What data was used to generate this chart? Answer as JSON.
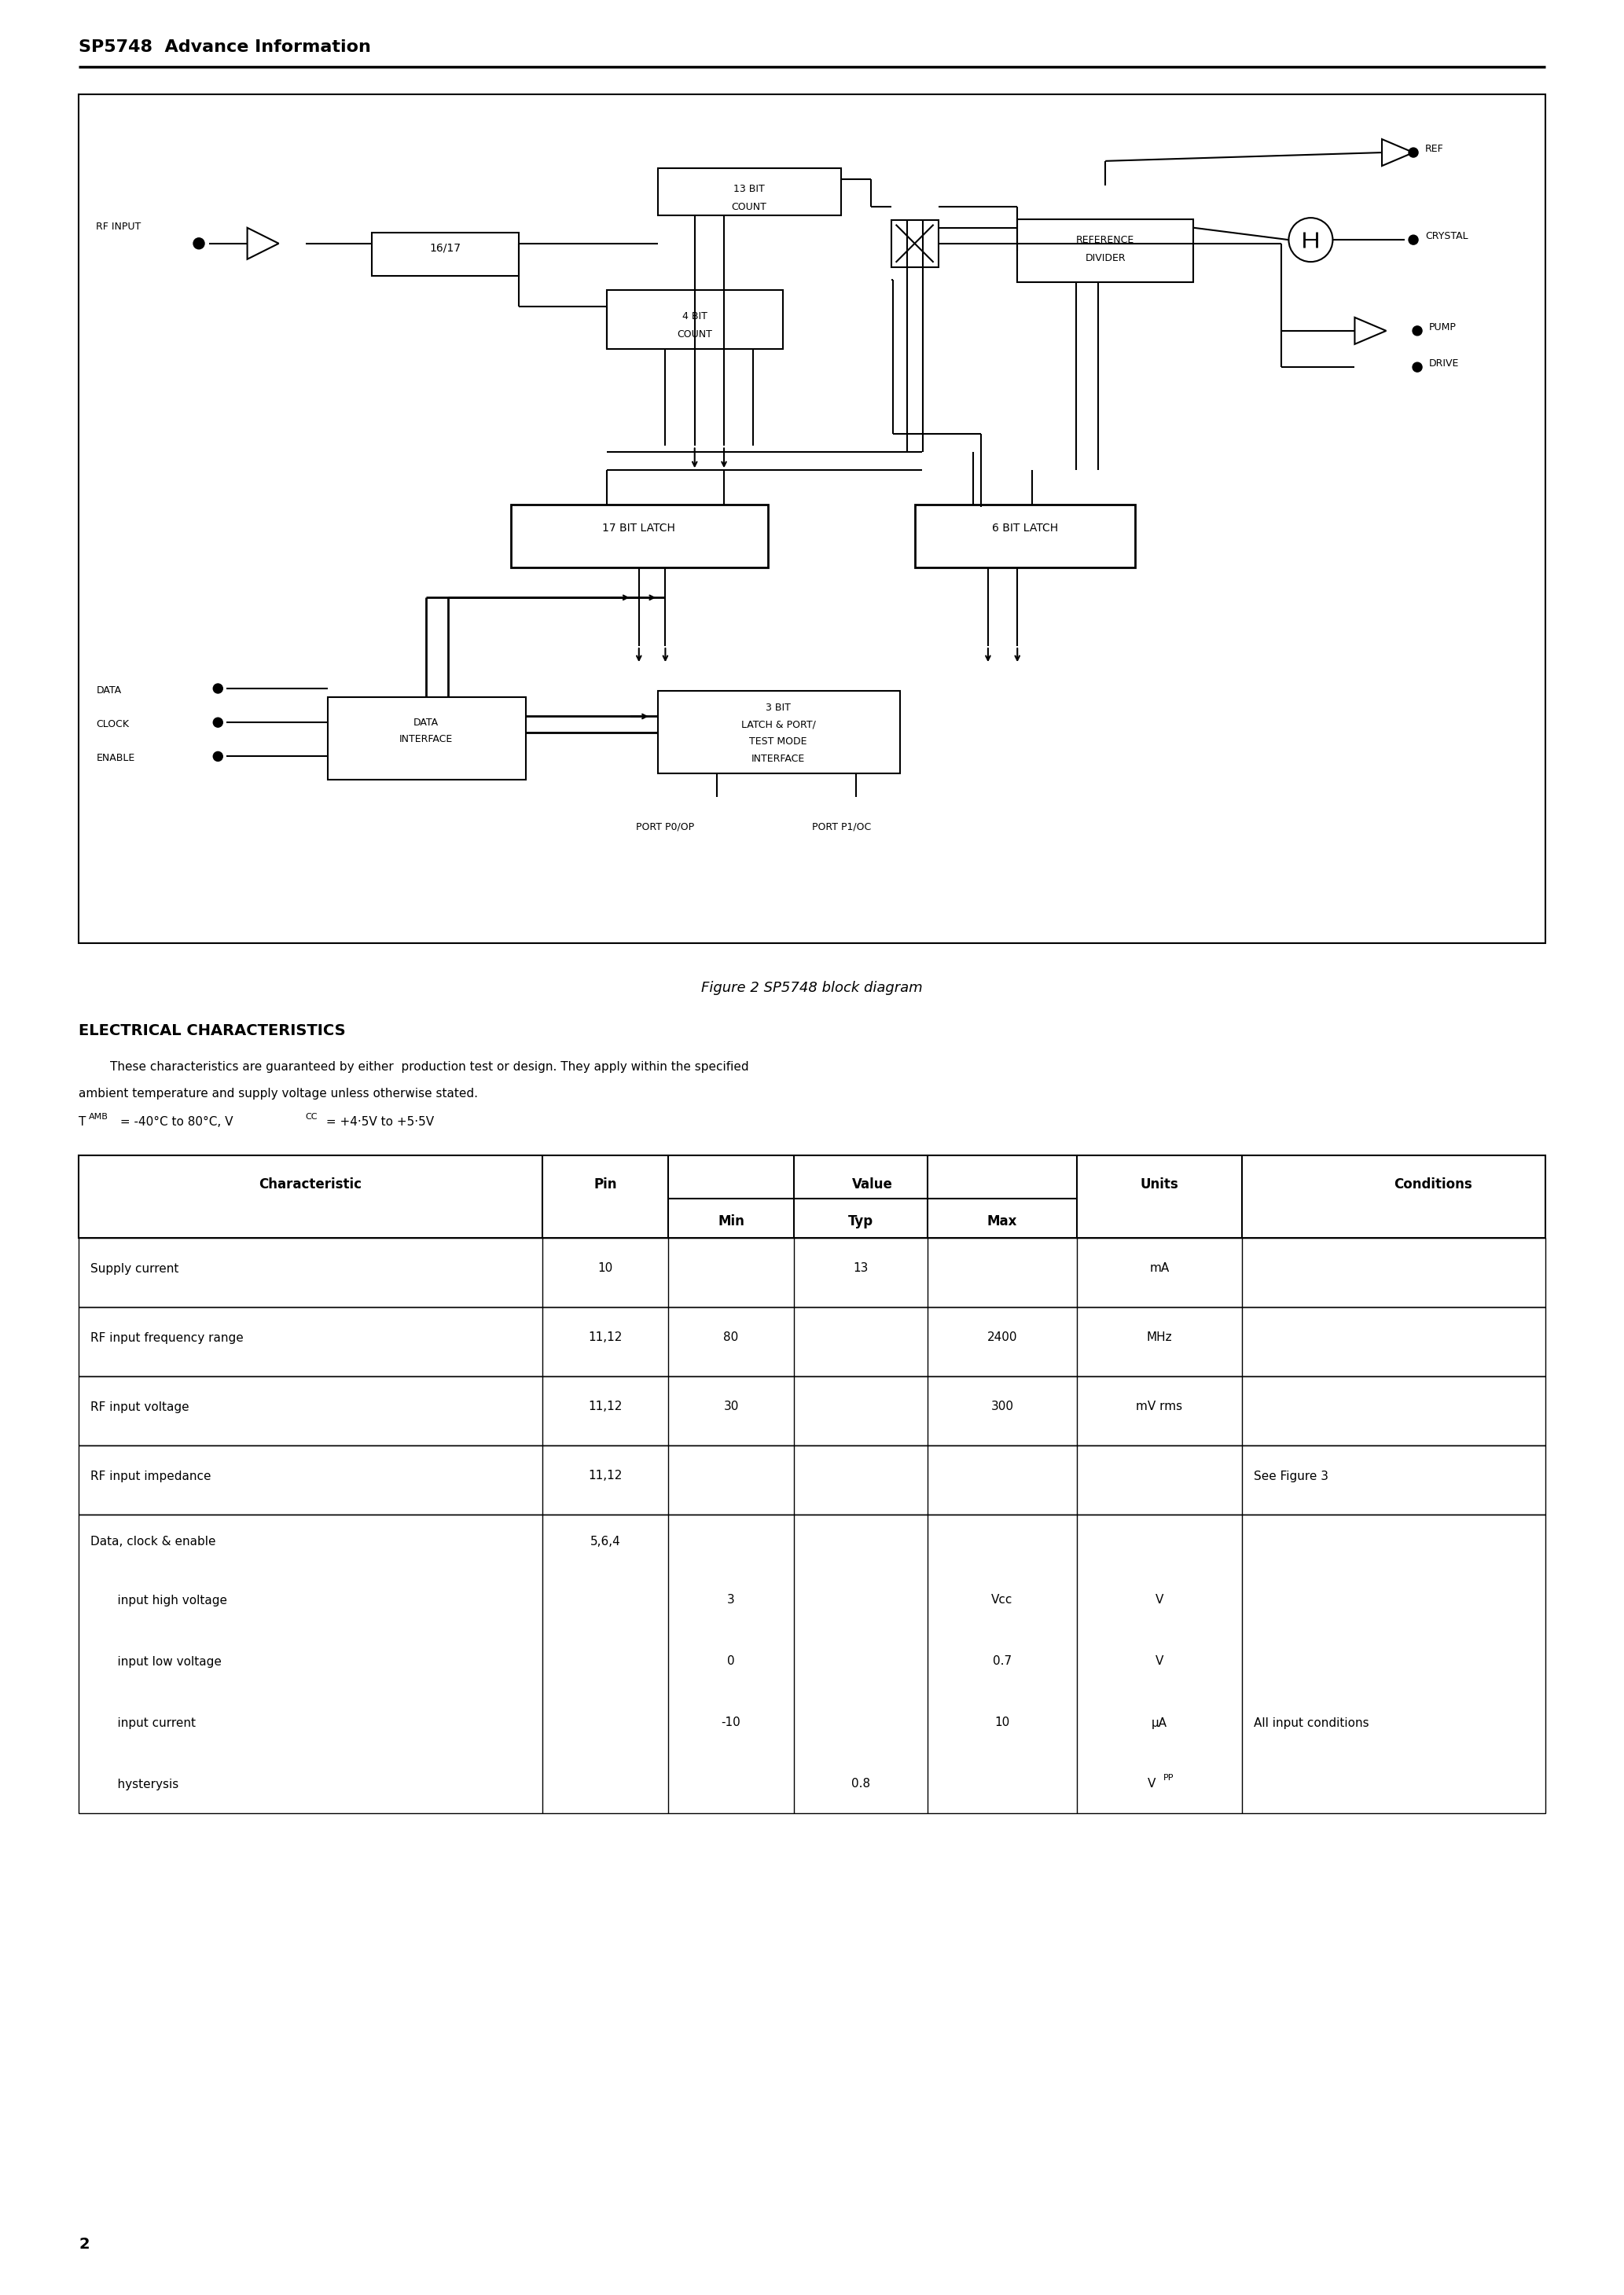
{
  "page_title": "SP5748  Advance Information",
  "figure_caption": "Figure 2 SP5748 block diagram",
  "section_title": "ELECTRICAL CHARACTERISTICS",
  "section_intro_1": "These characteristics are guaranteed by either  production test or design. They apply within the specified",
  "section_intro_2": "ambient temperature and supply voltage unless otherwise stated.",
  "conditions_line": "T_AMB = -40°C to 80°C, V_CC = +4·5V to +5·5V",
  "table_headers": [
    "Characteristic",
    "Pin",
    "Min",
    "Typ",
    "Max",
    "Units",
    "Conditions"
  ],
  "page_number": "2",
  "bg_color": "#ffffff",
  "text_color": "#000000"
}
